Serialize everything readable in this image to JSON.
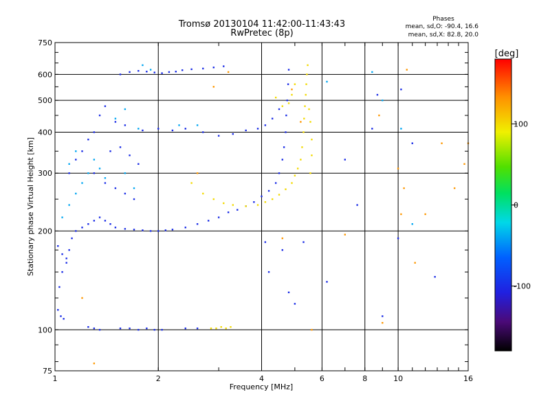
{
  "chart_data": {
    "type": "scatter",
    "title_line1": "Tromsø 20130104 11:42:00-11:43:43",
    "title_line2": "RwPretec (8p)",
    "xlabel": "Frequency [MHz]",
    "ylabel": "Stationary phase Virtual Height [km]",
    "x_scale": "log",
    "y_scale": "log",
    "xlim": [
      1,
      16
    ],
    "ylim": [
      75,
      750
    ],
    "xticks": [
      1,
      2,
      4,
      6,
      8,
      10,
      16
    ],
    "yticks": [
      75,
      100,
      200,
      300,
      400,
      500,
      600,
      750
    ],
    "grid_x": [
      2,
      4,
      6,
      8,
      10
    ],
    "grid_y": [
      100,
      200,
      300,
      400,
      500,
      600
    ],
    "grid": true,
    "stats": {
      "header": "Phases",
      "line_o": "mean, sd,O: -90.4, 16.6",
      "line_x": "mean, sd,X:  82.8, 20.0"
    },
    "colorbar": {
      "label": "[deg]",
      "ticks": [
        100,
        0,
        -100
      ],
      "range": [
        -180,
        180
      ],
      "palette": "rainbow"
    },
    "series": [
      {
        "phase_deg": -100,
        "points": [
          [
            1.02,
            115
          ],
          [
            1.04,
            110
          ],
          [
            1.06,
            108
          ],
          [
            1.03,
            135
          ],
          [
            1.05,
            150
          ],
          [
            1.08,
            160
          ],
          [
            1.1,
            175
          ],
          [
            1.12,
            190
          ],
          [
            1.15,
            200
          ],
          [
            1.2,
            205
          ],
          [
            1.25,
            210
          ],
          [
            1.3,
            215
          ],
          [
            1.35,
            220
          ],
          [
            1.4,
            215
          ],
          [
            1.45,
            210
          ],
          [
            1.5,
            205
          ],
          [
            1.6,
            203
          ],
          [
            1.7,
            202
          ],
          [
            1.8,
            201
          ],
          [
            1.9,
            200
          ],
          [
            2.0,
            200
          ],
          [
            2.1,
            201
          ],
          [
            2.2,
            202
          ],
          [
            2.4,
            205
          ],
          [
            2.6,
            210
          ],
          [
            2.8,
            215
          ],
          [
            3.0,
            220
          ],
          [
            3.2,
            228
          ],
          [
            3.4,
            232
          ],
          [
            3.6,
            238
          ],
          [
            3.8,
            245
          ],
          [
            4.0,
            255
          ],
          [
            4.2,
            265
          ],
          [
            4.4,
            280
          ],
          [
            4.5,
            300
          ],
          [
            4.6,
            330
          ],
          [
            4.65,
            360
          ],
          [
            4.7,
            400
          ],
          [
            4.72,
            450
          ],
          [
            4.75,
            500
          ],
          [
            4.78,
            560
          ],
          [
            4.8,
            620
          ],
          [
            4.5,
            470
          ],
          [
            4.3,
            440
          ],
          [
            4.1,
            420
          ],
          [
            3.9,
            410
          ],
          [
            3.6,
            405
          ],
          [
            3.3,
            395
          ],
          [
            3.0,
            390
          ],
          [
            2.7,
            400
          ],
          [
            2.4,
            410
          ],
          [
            2.2,
            405
          ],
          [
            2.0,
            410
          ],
          [
            1.8,
            405
          ],
          [
            1.6,
            420
          ],
          [
            1.5,
            430
          ],
          [
            1.4,
            480
          ],
          [
            1.35,
            450
          ],
          [
            1.3,
            400
          ],
          [
            1.25,
            380
          ],
          [
            1.2,
            350
          ],
          [
            1.15,
            330
          ],
          [
            1.1,
            300
          ],
          [
            1.3,
            300
          ],
          [
            1.4,
            280
          ],
          [
            1.5,
            270
          ],
          [
            1.6,
            260
          ],
          [
            1.7,
            250
          ],
          [
            1.55,
            600
          ],
          [
            1.65,
            610
          ],
          [
            1.75,
            615
          ],
          [
            1.85,
            612
          ],
          [
            1.95,
            608
          ],
          [
            2.05,
            605
          ],
          [
            2.15,
            610
          ],
          [
            2.25,
            612
          ],
          [
            2.35,
            618
          ],
          [
            2.5,
            622
          ],
          [
            2.7,
            625
          ],
          [
            2.9,
            630
          ],
          [
            3.1,
            635
          ],
          [
            1.25,
            102
          ],
          [
            1.3,
            101
          ],
          [
            1.35,
            100
          ],
          [
            1.55,
            101
          ],
          [
            1.65,
            101
          ],
          [
            1.75,
            100
          ],
          [
            1.85,
            101
          ],
          [
            1.95,
            100
          ],
          [
            2.05,
            100
          ],
          [
            2.4,
            101
          ],
          [
            2.6,
            101
          ],
          [
            1.02,
            180
          ],
          [
            1.05,
            170
          ],
          [
            1.08,
            165
          ],
          [
            1.45,
            350
          ],
          [
            1.55,
            360
          ],
          [
            1.65,
            340
          ],
          [
            1.75,
            320
          ],
          [
            4.2,
            150
          ],
          [
            4.8,
            130
          ],
          [
            5.0,
            120
          ],
          [
            6.2,
            140
          ],
          [
            7.6,
            240
          ],
          [
            8.4,
            410
          ],
          [
            9.0,
            110
          ],
          [
            10.2,
            540
          ],
          [
            11.0,
            370
          ],
          [
            12.8,
            145
          ],
          [
            10.0,
            190
          ],
          [
            7.0,
            330
          ],
          [
            8.7,
            520
          ],
          [
            4.6,
            175
          ],
          [
            4.1,
            185
          ],
          [
            5.3,
            185
          ]
        ]
      },
      {
        "phase_deg": 100,
        "points": [
          [
            2.5,
            280
          ],
          [
            2.7,
            260
          ],
          [
            2.9,
            250
          ],
          [
            3.1,
            243
          ],
          [
            3.3,
            240
          ],
          [
            3.6,
            238
          ],
          [
            3.9,
            240
          ],
          [
            4.1,
            245
          ],
          [
            4.3,
            250
          ],
          [
            4.5,
            258
          ],
          [
            4.7,
            268
          ],
          [
            4.9,
            280
          ],
          [
            5.0,
            295
          ],
          [
            5.1,
            310
          ],
          [
            5.2,
            330
          ],
          [
            5.25,
            360
          ],
          [
            5.3,
            400
          ],
          [
            5.32,
            440
          ],
          [
            5.35,
            480
          ],
          [
            5.38,
            520
          ],
          [
            5.4,
            560
          ],
          [
            5.42,
            600
          ],
          [
            5.45,
            640
          ],
          [
            5.0,
            560
          ],
          [
            4.9,
            520
          ],
          [
            4.8,
            490
          ],
          [
            5.5,
            470
          ],
          [
            5.55,
            430
          ],
          [
            5.6,
            380
          ],
          [
            5.6,
            340
          ],
          [
            5.55,
            300
          ],
          [
            2.85,
            101
          ],
          [
            2.95,
            101
          ],
          [
            3.05,
            102
          ],
          [
            3.15,
            101
          ],
          [
            3.25,
            102
          ],
          [
            4.4,
            510
          ],
          [
            4.6,
            480
          ]
        ]
      },
      {
        "phase_deg": 130,
        "points": [
          [
            1.2,
            125
          ],
          [
            1.3,
            79
          ],
          [
            2.6,
            300
          ],
          [
            2.9,
            550
          ],
          [
            3.2,
            610
          ],
          [
            4.6,
            190
          ],
          [
            4.9,
            540
          ],
          [
            5.2,
            430
          ],
          [
            5.6,
            100
          ],
          [
            7.0,
            195
          ],
          [
            8.8,
            450
          ],
          [
            10.0,
            310
          ],
          [
            10.2,
            225
          ],
          [
            10.6,
            620
          ],
          [
            11.2,
            160
          ],
          [
            12.0,
            225
          ],
          [
            13.4,
            370
          ],
          [
            14.6,
            270
          ],
          [
            15.6,
            320
          ],
          [
            16.0,
            370
          ],
          [
            9.0,
            105
          ],
          [
            10.4,
            270
          ]
        ]
      },
      {
        "phase_deg": -40,
        "points": [
          [
            1.05,
            220
          ],
          [
            1.1,
            240
          ],
          [
            1.15,
            260
          ],
          [
            1.2,
            280
          ],
          [
            1.25,
            300
          ],
          [
            1.1,
            320
          ],
          [
            1.15,
            350
          ],
          [
            1.3,
            330
          ],
          [
            1.35,
            310
          ],
          [
            1.4,
            290
          ],
          [
            1.6,
            300
          ],
          [
            1.7,
            270
          ],
          [
            1.8,
            640
          ],
          [
            1.9,
            620
          ],
          [
            6.2,
            570
          ],
          [
            8.4,
            610
          ],
          [
            9.0,
            500
          ],
          [
            10.2,
            410
          ],
          [
            11.0,
            210
          ],
          [
            1.75,
            410
          ],
          [
            1.5,
            440
          ],
          [
            1.6,
            470
          ],
          [
            2.3,
            420
          ],
          [
            2.6,
            420
          ]
        ]
      }
    ]
  }
}
